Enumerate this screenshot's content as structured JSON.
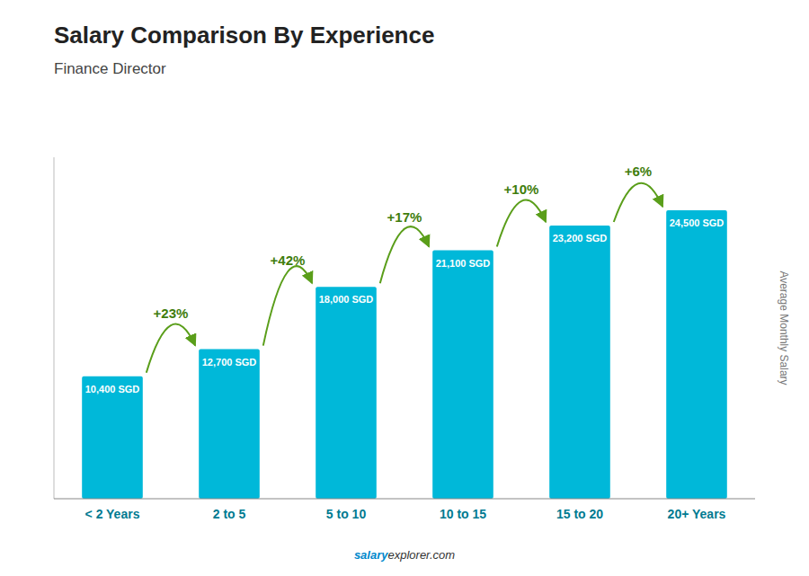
{
  "chart_data": {
    "type": "bar",
    "title": "Salary Comparison By Experience",
    "subtitle": "Finance Director",
    "ylabel": "Average Monthly Salary",
    "categories": [
      "< 2 Years",
      "2 to 5",
      "5 to 10",
      "10 to 15",
      "15 to 20",
      "20+ Years"
    ],
    "values": [
      10400,
      12700,
      18000,
      21100,
      23200,
      24500
    ],
    "value_labels": [
      "10,400 SGD",
      "12,700 SGD",
      "18,000 SGD",
      "21,100 SGD",
      "23,200 SGD",
      "24,500 SGD"
    ],
    "data_labels": true,
    "annotations": [
      "+23%",
      "+42%",
      "+17%",
      "+10%",
      "+6%"
    ],
    "footer": [
      "salary",
      "explorer.com"
    ],
    "color": "#00b8d9",
    "ylim": [
      0,
      29000
    ],
    "tick_labels": "x",
    "grid": false
  }
}
